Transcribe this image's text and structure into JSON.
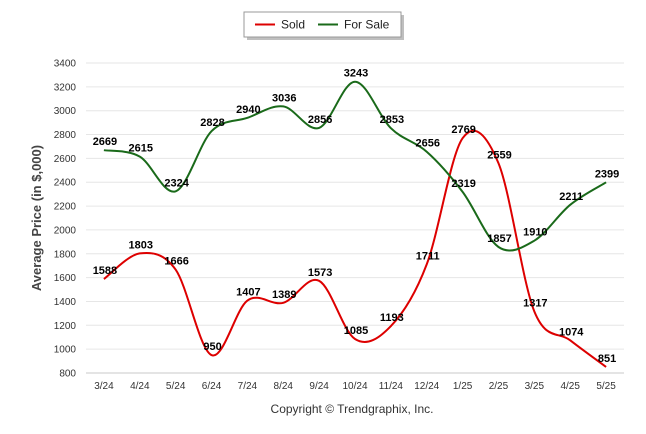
{
  "chart_data": {
    "type": "line",
    "categories": [
      "3/24",
      "4/24",
      "5/24",
      "6/24",
      "7/24",
      "8/24",
      "9/24",
      "10/24",
      "11/24",
      "12/24",
      "1/25",
      "2/25",
      "3/25",
      "4/25",
      "5/25"
    ],
    "series": [
      {
        "name": "Sold",
        "color": "#dd0000",
        "values": [
          1588,
          1803,
          1666,
          950,
          1407,
          1389,
          1573,
          1085,
          1193,
          1711,
          2769,
          2559,
          1317,
          1074,
          851
        ]
      },
      {
        "name": "For Sale",
        "color": "#1a6a1a",
        "values": [
          2669,
          2615,
          2324,
          2828,
          2940,
          3036,
          2856,
          3243,
          2853,
          2656,
          2319,
          1857,
          1910,
          2211,
          2399
        ]
      }
    ],
    "ylabel": "Average Price (in $,000)",
    "ylim": [
      800,
      3400
    ],
    "yticks": [
      800,
      1000,
      1200,
      1400,
      1600,
      1800,
      2000,
      2200,
      2400,
      2600,
      2800,
      3000,
      3200,
      3400
    ],
    "grid": true,
    "legend_position": "top-center"
  },
  "footer": {
    "copyright": "Copyright © Trendgraphix, Inc."
  }
}
